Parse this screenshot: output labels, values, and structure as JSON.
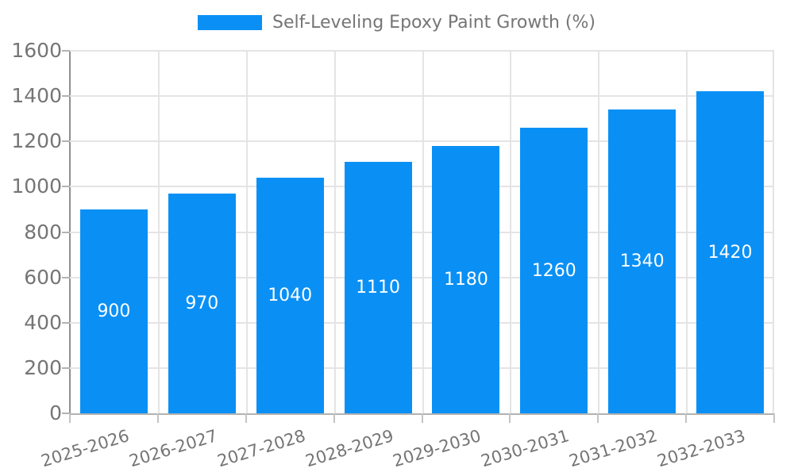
{
  "legend": {
    "label": "Self-Leveling Epoxy Paint Growth (%)"
  },
  "chart_data": {
    "type": "bar",
    "title": "Self-Leveling Epoxy Paint Growth (%)",
    "categories": [
      "2025-2026",
      "2026-2027",
      "2027-2028",
      "2028-2029",
      "2029-2030",
      "2030-2031",
      "2031-2032",
      "2032-2033"
    ],
    "values": [
      900,
      970,
      1040,
      1110,
      1180,
      1260,
      1340,
      1420
    ],
    "value_labels": [
      "900",
      "970",
      "1040",
      "1110",
      "1180",
      "1260",
      "1340",
      "1420"
    ],
    "xlabel": "",
    "ylabel": "",
    "ylim": [
      0,
      1600
    ],
    "yticks": [
      0,
      200,
      400,
      600,
      800,
      1000,
      1200,
      1400,
      1600
    ],
    "grid": true,
    "legend_position": "top",
    "style": {
      "bar_color": "#0a90f5",
      "value_label_color": "#ffffff",
      "text_color": "#757575",
      "grid_color": "#e4e4e4",
      "axis_color": "#b2b2b2",
      "tick_color": "#c4c4c4"
    }
  }
}
